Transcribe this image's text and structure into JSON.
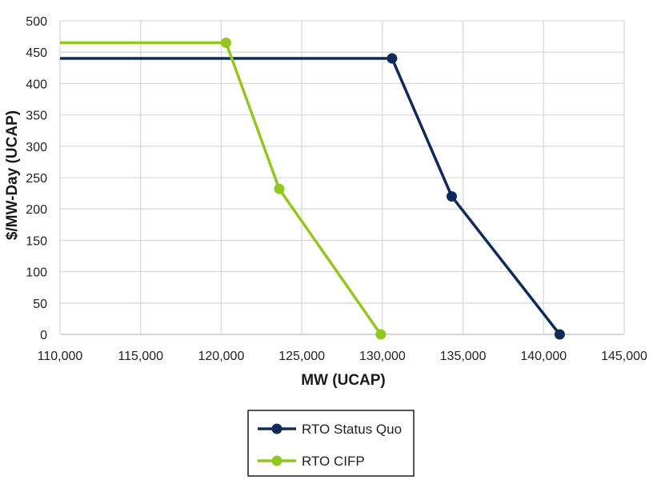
{
  "chart_data": {
    "type": "line",
    "xlabel": "MW (UCAP)",
    "ylabel": "$/MW-Day (UCAP)",
    "xlim": [
      110000,
      145000
    ],
    "ylim": [
      0,
      500
    ],
    "x_ticks": [
      "110,000",
      "115,000",
      "120,000",
      "125,000",
      "130,000",
      "135,000",
      "140,000",
      "145,000"
    ],
    "y_ticks": [
      "0",
      "50",
      "100",
      "150",
      "200",
      "250",
      "300",
      "350",
      "400",
      "450",
      "500"
    ],
    "grid": true,
    "legend_position": "bottom-center",
    "series": [
      {
        "name": "RTO Status Quo",
        "color": "#0e2b5c",
        "line_start_x": 110000,
        "points": [
          {
            "x": 130600,
            "y": 440
          },
          {
            "x": 134300,
            "y": 220
          },
          {
            "x": 141000,
            "y": 0
          }
        ]
      },
      {
        "name": "RTO CIFP",
        "color": "#92c81e",
        "line_start_x": 110000,
        "points": [
          {
            "x": 120300,
            "y": 465
          },
          {
            "x": 123600,
            "y": 232
          },
          {
            "x": 129900,
            "y": 0
          }
        ]
      }
    ]
  }
}
